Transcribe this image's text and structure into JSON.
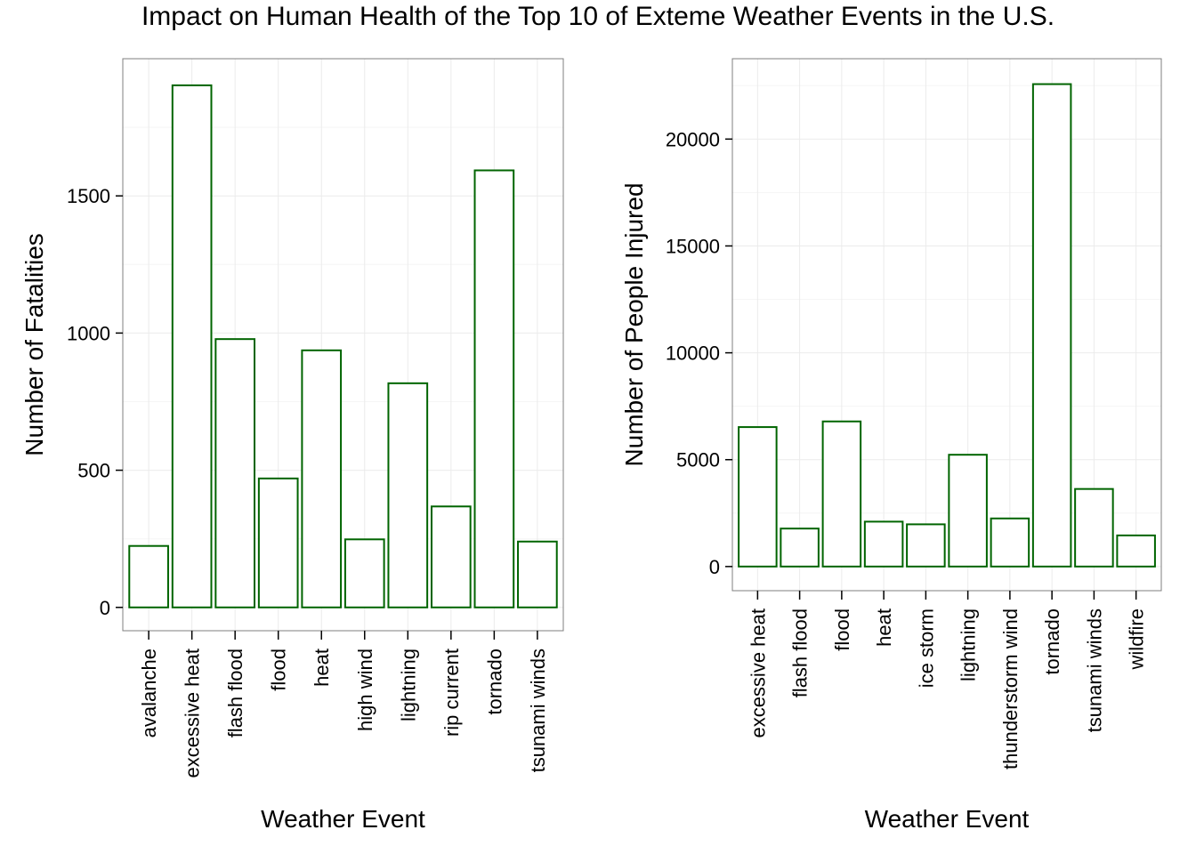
{
  "title": "Impact on Human Health of the Top 10 of Exteme Weather Events in the U.S.",
  "colors": {
    "bar_outline": "#006400",
    "bar_fill": "#ffffff",
    "grid": "#ebebeb",
    "panel_border": "#7f7f7f"
  },
  "chart_data": [
    {
      "type": "bar",
      "xlabel": "Weather Event",
      "ylabel": "Number of Fatalities",
      "categories": [
        "avalanche",
        "excessive heat",
        "flash flood",
        "flood",
        "heat",
        "high wind",
        "lightning",
        "rip current",
        "tornado",
        "tsunami winds"
      ],
      "values": [
        224,
        1903,
        978,
        470,
        937,
        248,
        817,
        368,
        1593,
        240
      ],
      "yticks": [
        0,
        500,
        1000,
        1500
      ],
      "ylim": [
        -85,
        2000
      ],
      "grid": true
    },
    {
      "type": "bar",
      "xlabel": "Weather Event",
      "ylabel": "Number of People Injured",
      "categories": [
        "excessive heat",
        "flash flood",
        "flood",
        "heat",
        "ice storm",
        "lightning",
        "thunderstorm wind",
        "tornado",
        "tsunami winds",
        "wildfire"
      ],
      "values": [
        6525,
        1777,
        6789,
        2100,
        1975,
        5230,
        2250,
        22571,
        3629,
        1456
      ],
      "yticks": [
        0,
        5000,
        10000,
        15000,
        20000
      ],
      "ylim": [
        -1130,
        23760
      ],
      "grid": true
    }
  ]
}
